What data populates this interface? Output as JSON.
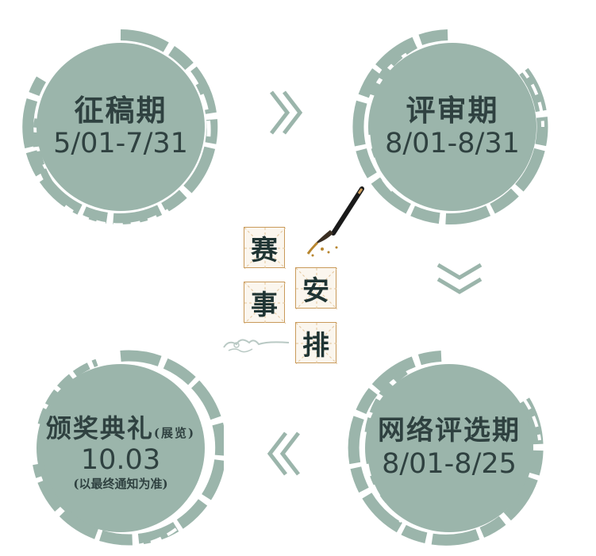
{
  "schedule": {
    "submission": {
      "title": "征稿期",
      "date": "5/01-7/31"
    },
    "review": {
      "title": "评审期",
      "date": "8/01-8/31"
    },
    "online_vote": {
      "title": "网络评选期",
      "date": "8/01-8/25"
    },
    "ceremony": {
      "title": "颁奖典礼",
      "title_suffix": "(展览)",
      "date": "10.03",
      "note": "(以最终通知为准)"
    }
  },
  "center_label": {
    "char1": "赛",
    "char2": "事",
    "char3": "安",
    "char4": "排"
  },
  "colors": {
    "ink_wash": "#9bb5ab",
    "text": "#2f4140",
    "tile_border": "#c99a5a"
  },
  "icons": [
    "brush-icon",
    "cloud-ornament-icon",
    "double-chevron-right-icon",
    "double-chevron-down-icon",
    "double-chevron-left-icon"
  ]
}
